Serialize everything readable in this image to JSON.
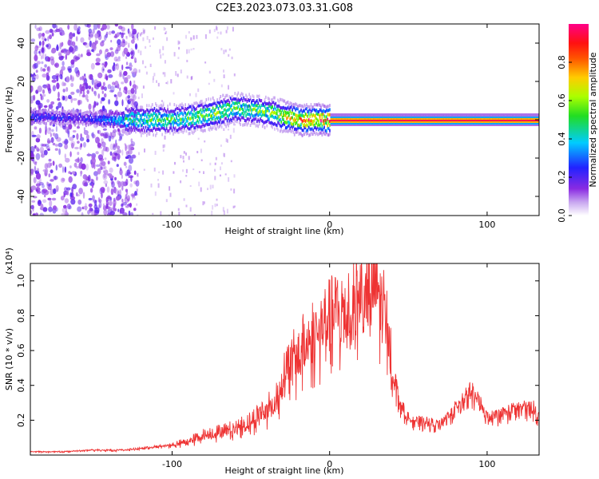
{
  "title": "C2E3.2023.073.03.31.G08",
  "chart_data": [
    {
      "type": "heatmap",
      "xlabel": "Height of straight line (km)",
      "ylabel": "Frequency (Hz)",
      "xlim": [
        -190,
        133
      ],
      "ylim": [
        -50,
        50
      ],
      "xticks": [
        "-100",
        "0",
        "100"
      ],
      "xtick_values": [
        -100,
        0,
        100
      ],
      "yticks": [
        "40",
        "20",
        "0",
        "-20",
        "-40"
      ],
      "ytick_values": [
        40,
        20,
        0,
        -20,
        -40
      ],
      "colorbar": {
        "label": "Normalized spectral amplitude",
        "ticks": [
          "0.0",
          "0.2",
          "0.4",
          "0.6",
          "0.8"
        ],
        "tick_values": [
          0,
          0.2,
          0.4,
          0.6,
          0.8
        ],
        "range": [
          0,
          1
        ]
      },
      "ridge": {
        "x": [
          -190,
          -160,
          -140,
          -130,
          -120,
          -100,
          -90,
          -80,
          -70,
          -60,
          -50,
          -40,
          -30,
          -20,
          -10,
          0,
          50,
          100,
          133
        ],
        "freq": [
          2,
          1,
          0,
          0,
          0,
          0,
          1,
          2,
          4,
          6,
          5,
          4,
          2,
          0,
          0,
          0,
          0,
          0,
          0
        ],
        "amplitude": [
          0.3,
          0.25,
          0.35,
          0.5,
          0.55,
          0.55,
          0.6,
          0.62,
          0.65,
          0.6,
          0.6,
          0.62,
          0.7,
          0.85,
          0.9,
          0.95,
          0.95,
          0.95,
          0.95
        ]
      },
      "noise_region": [
        -190,
        -130
      ],
      "grid": false
    },
    {
      "type": "line",
      "xlabel": "Height of straight line (km)",
      "ylabel": "SNR (10 * v/v)",
      "y_multiplier": "(x10⁴)",
      "xlim": [
        -190,
        133
      ],
      "ylim": [
        0,
        1.1
      ],
      "xticks": [
        "-100",
        "0",
        "100"
      ],
      "xtick_values": [
        -100,
        0,
        100
      ],
      "yticks": [
        "0.2",
        "0.4",
        "0.6",
        "0.8",
        "1.0"
      ],
      "ytick_values": [
        0.2,
        0.4,
        0.6,
        0.8,
        1.0
      ],
      "series": [
        {
          "color": "#ee3333",
          "x": [
            -190,
            -170,
            -150,
            -130,
            -110,
            -100,
            -90,
            -80,
            -70,
            -60,
            -50,
            -40,
            -35,
            -30,
            -28,
            -20,
            -10,
            0,
            10,
            20,
            25,
            30,
            35,
            38,
            40,
            45,
            50,
            55,
            60,
            70,
            80,
            85,
            90,
            95,
            100,
            110,
            120,
            130,
            133
          ],
          "values": [
            0.02,
            0.02,
            0.03,
            0.03,
            0.05,
            0.06,
            0.08,
            0.12,
            0.14,
            0.16,
            0.2,
            0.28,
            0.3,
            0.45,
            0.5,
            0.6,
            0.72,
            0.8,
            0.88,
            0.95,
            0.98,
            0.96,
            0.85,
            0.7,
            0.5,
            0.3,
            0.22,
            0.2,
            0.2,
            0.18,
            0.28,
            0.35,
            0.38,
            0.32,
            0.22,
            0.25,
            0.28,
            0.28,
            0.22
          ]
        }
      ],
      "grid": false
    }
  ]
}
